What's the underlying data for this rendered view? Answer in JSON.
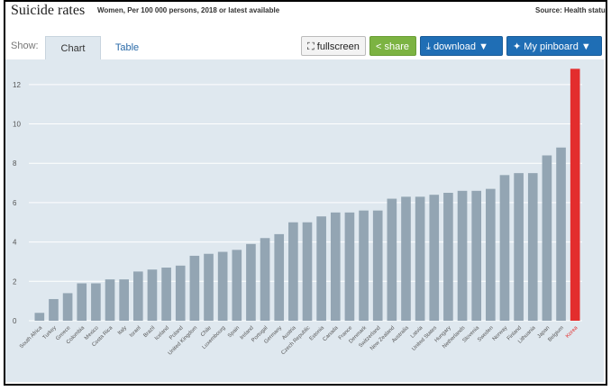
{
  "header": {
    "title": "Suicide rates",
    "subtitle": "Women, Per 100 000 persons, 2018 or latest available",
    "source": "Source: Health status"
  },
  "toolbar": {
    "show_label": "Show:",
    "tab_chart": "Chart",
    "tab_table": "Table",
    "fullscreen_label": "fullscreen",
    "share_label": "share",
    "download_label": "download ▼",
    "pinboard_label": "My pinboard ▼"
  },
  "colors": {
    "bar": "#93a5b3",
    "highlight": "#e32d2d",
    "background": "#dfe8ef",
    "grid": "#ffffff"
  },
  "chart_data": {
    "type": "bar",
    "title": "Suicide rates",
    "xlabel": "",
    "ylabel": "",
    "ylim": [
      0,
      13
    ],
    "yticks": [
      0,
      2,
      4,
      6,
      8,
      10,
      12
    ],
    "grid": true,
    "highlight_category": "Korea",
    "categories": [
      "South Africa",
      "Turkey",
      "Greece",
      "Colombia",
      "Mexico",
      "Costa Rica",
      "Italy",
      "Israel",
      "Brazil",
      "Iceland",
      "Poland",
      "United Kingdom",
      "Chile",
      "Luxembourg",
      "Spain",
      "Ireland",
      "Portugal",
      "Germany",
      "Austria",
      "Czech Republic",
      "Estonia",
      "Canada",
      "France",
      "Denmark",
      "Switzerland",
      "New Zealand",
      "Australia",
      "Latvia",
      "United States",
      "Hungary",
      "Netherlands",
      "Slovenia",
      "Sweden",
      "Norway",
      "Finland",
      "Lithuania",
      "Japan",
      "Belgium",
      "Korea"
    ],
    "values": [
      0.4,
      1.1,
      1.4,
      1.9,
      1.9,
      2.1,
      2.1,
      2.5,
      2.6,
      2.7,
      2.8,
      3.3,
      3.4,
      3.5,
      3.6,
      3.9,
      4.2,
      4.4,
      5.0,
      5.0,
      5.3,
      5.5,
      5.5,
      5.6,
      5.6,
      6.2,
      6.3,
      6.3,
      6.4,
      6.5,
      6.6,
      6.6,
      6.7,
      7.4,
      7.5,
      7.5,
      8.4,
      8.8,
      12.8
    ]
  }
}
